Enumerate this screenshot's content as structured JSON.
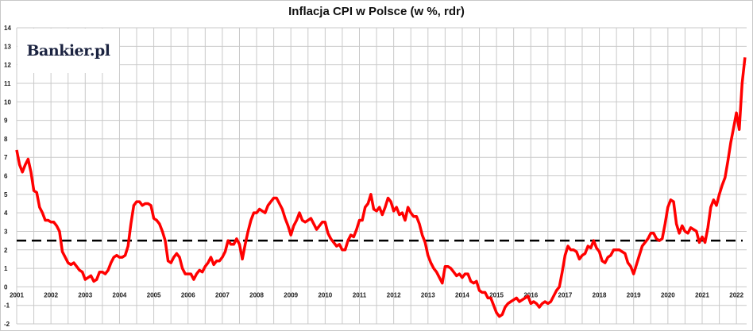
{
  "chart_data": {
    "type": "line",
    "title": "Inflacja CPI w Polsce (w %, rdr)",
    "xlabel": "",
    "ylabel": "",
    "ylim": [
      -2,
      14
    ],
    "yticks": [
      "-2",
      "-1",
      "0",
      "1",
      "2",
      "3",
      "4",
      "5",
      "6",
      "7",
      "8",
      "9",
      "10",
      "11",
      "12",
      "13",
      "14"
    ],
    "xticks": [
      "2001",
      "2002",
      "2003",
      "2004",
      "2005",
      "2006",
      "2007",
      "2008",
      "2009",
      "2010",
      "2011",
      "2012",
      "2013",
      "2014",
      "2015",
      "2016",
      "2017",
      "2018",
      "2019",
      "2020",
      "2021",
      "2022"
    ],
    "x_start": "2001-01",
    "frequency": "monthly",
    "grid": true,
    "line_color": "#ff0000",
    "reference_line": {
      "value": 2.5,
      "style": "dashed",
      "color": "#000000"
    },
    "series": [
      {
        "values": [
          7.4,
          6.6,
          6.2,
          6.6,
          6.9,
          6.2,
          5.2,
          5.1,
          4.3,
          4.0,
          3.6,
          3.6,
          3.5,
          3.5,
          3.3,
          3.0,
          1.9,
          1.6,
          1.3,
          1.2,
          1.3,
          1.1,
          0.9,
          0.8,
          0.4,
          0.5,
          0.6,
          0.3,
          0.4,
          0.8,
          0.8,
          0.7,
          0.9,
          1.3,
          1.6,
          1.7,
          1.6,
          1.6,
          1.7,
          2.2,
          3.4,
          4.4,
          4.6,
          4.6,
          4.4,
          4.5,
          4.5,
          4.4,
          3.7,
          3.6,
          3.4,
          3.0,
          2.5,
          1.4,
          1.3,
          1.6,
          1.8,
          1.6,
          1.0,
          0.7,
          0.7,
          0.7,
          0.4,
          0.7,
          0.9,
          0.8,
          1.1,
          1.3,
          1.6,
          1.2,
          1.4,
          1.4,
          1.6,
          1.9,
          2.5,
          2.3,
          2.3,
          2.6,
          2.3,
          1.5,
          2.3,
          3.0,
          3.6,
          4.0,
          4.0,
          4.2,
          4.1,
          4.0,
          4.4,
          4.6,
          4.8,
          4.8,
          4.5,
          4.2,
          3.7,
          3.3,
          2.8,
          3.3,
          3.6,
          4.0,
          3.6,
          3.5,
          3.6,
          3.7,
          3.4,
          3.1,
          3.3,
          3.5,
          3.5,
          2.9,
          2.6,
          2.4,
          2.2,
          2.3,
          2.0,
          2.0,
          2.5,
          2.8,
          2.7,
          3.1,
          3.6,
          3.6,
          4.3,
          4.5,
          5.0,
          4.2,
          4.1,
          4.3,
          3.9,
          4.3,
          4.8,
          4.6,
          4.1,
          4.3,
          3.9,
          4.0,
          3.6,
          4.3,
          4.0,
          3.8,
          3.8,
          3.4,
          2.8,
          2.4,
          1.7,
          1.3,
          1.0,
          0.8,
          0.5,
          0.2,
          1.1,
          1.1,
          1.0,
          0.8,
          0.6,
          0.7,
          0.5,
          0.7,
          0.7,
          0.3,
          0.2,
          0.3,
          -0.2,
          -0.3,
          -0.3,
          -0.6,
          -0.6,
          -1.0,
          -1.4,
          -1.6,
          -1.5,
          -1.1,
          -0.9,
          -0.8,
          -0.7,
          -0.6,
          -0.8,
          -0.7,
          -0.6,
          -0.5,
          -0.9,
          -0.8,
          -0.9,
          -1.1,
          -0.9,
          -0.8,
          -0.9,
          -0.8,
          -0.5,
          -0.2,
          0.0,
          0.8,
          1.7,
          2.2,
          2.0,
          2.0,
          1.9,
          1.5,
          1.7,
          1.8,
          2.2,
          2.1,
          2.5,
          2.1,
          1.9,
          1.4,
          1.3,
          1.6,
          1.7,
          2.0,
          2.0,
          2.0,
          1.9,
          1.8,
          1.3,
          1.1,
          0.7,
          1.2,
          1.7,
          2.2,
          2.4,
          2.6,
          2.9,
          2.9,
          2.6,
          2.5,
          2.6,
          3.4,
          4.3,
          4.7,
          4.6,
          3.4,
          2.9,
          3.3,
          3.0,
          2.9,
          3.2,
          3.1,
          3.0,
          2.4,
          2.7,
          2.4,
          3.2,
          4.3,
          4.7,
          4.4,
          5.0,
          5.5,
          5.9,
          6.8,
          7.8,
          8.6,
          9.4,
          8.5,
          11.0,
          12.4
        ]
      }
    ],
    "logo": "Bankier.pl"
  }
}
